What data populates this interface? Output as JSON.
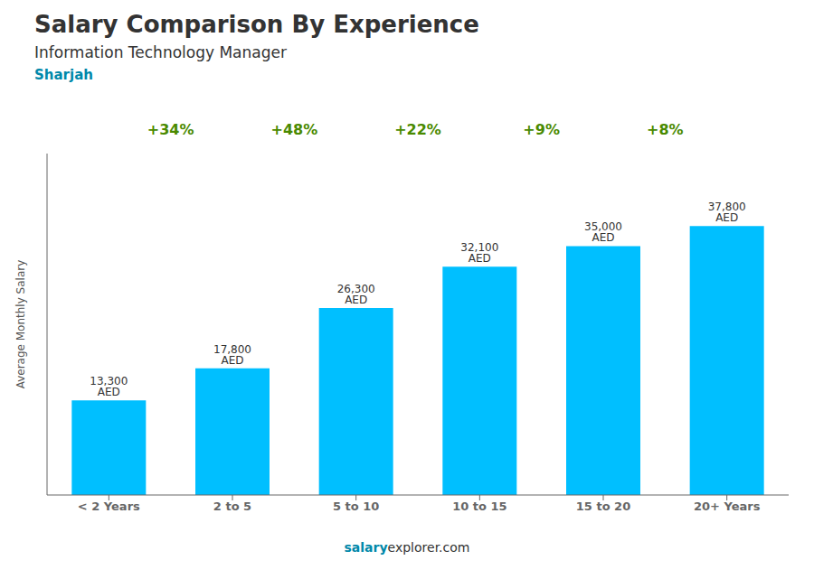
{
  "chart_data": {
    "type": "bar",
    "title": "Salary Comparison By Experience",
    "subtitle": "Information Technology Manager",
    "annotations": [
      "Sharjah",
      "salary",
      "explorer.com"
    ],
    "ylabel": "Average Monthly Salary",
    "categories": [
      "< 2 Years",
      "2 to 5",
      "5 to 10",
      "10 to 15",
      "15 to 20",
      "20+ Years"
    ],
    "values": [
      13300,
      17800,
      26300,
      32100,
      35000,
      37800
    ],
    "value_labels": [
      "13,300 AED",
      "17,800 AED",
      "26,300 AED",
      "32,100 AED",
      "35,000 AED",
      "37,800 AED"
    ],
    "data_labels": true,
    "changes": [
      {
        "value": 34,
        "label": "+34%"
      },
      {
        "value": 48,
        "label": "+48%"
      },
      {
        "value": 22,
        "label": "+22%"
      },
      {
        "value": 9,
        "label": "+9%"
      },
      {
        "value": 8,
        "label": "+8%"
      }
    ],
    "color": "#00BFFF",
    "ylim": [
      0,
      48000
    ],
    "grid": false,
    "tick_labels": "x"
  }
}
